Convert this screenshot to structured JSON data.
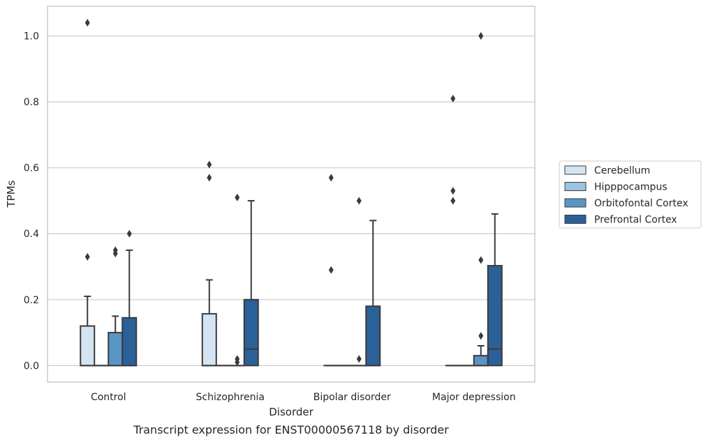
{
  "chart_data": {
    "type": "box",
    "caption": "Transcript expression for ENST00000567118 by disorder",
    "xlabel": "Disorder",
    "ylabel": "TPMs",
    "ylim": [
      -0.05,
      1.09
    ],
    "yticks": [
      "0.0",
      "0.2",
      "0.4",
      "0.6",
      "0.8",
      "1.0"
    ],
    "grid": "horizontal",
    "legend_position": "right",
    "categories": [
      "Control",
      "Schizophrenia",
      "Bipolar disorder",
      "Major depression"
    ],
    "series": [
      {
        "name": "Cerebellum",
        "color": "#d4e4f2",
        "boxes": [
          {
            "q1": 0,
            "median": 0,
            "q3": 0.12,
            "whisker_low": 0,
            "whisker_high": 0.21,
            "outliers": [
              0.33,
              1.04
            ]
          },
          {
            "q1": 0,
            "median": 0,
            "q3": 0.157,
            "whisker_low": 0,
            "whisker_high": 0.26,
            "outliers": [
              0.57,
              0.61
            ]
          },
          {
            "q1": 0,
            "median": 0,
            "q3": 0,
            "whisker_low": 0,
            "whisker_high": 0,
            "outliers": [
              0.29,
              0.57
            ]
          },
          {
            "q1": 0,
            "median": 0,
            "q3": 0,
            "whisker_low": 0,
            "whisker_high": 0,
            "outliers": [
              0.5,
              0.53,
              0.81
            ]
          }
        ]
      },
      {
        "name": "Hipppocampus",
        "color": "#9bc4df",
        "boxes": [
          {
            "q1": 0,
            "median": 0,
            "q3": 0,
            "whisker_low": 0,
            "whisker_high": 0,
            "outliers": []
          },
          {
            "q1": 0,
            "median": 0,
            "q3": 0,
            "whisker_low": 0,
            "whisker_high": 0,
            "outliers": []
          },
          {
            "q1": 0,
            "median": 0,
            "q3": 0,
            "whisker_low": 0,
            "whisker_high": 0,
            "outliers": []
          },
          {
            "q1": 0,
            "median": 0,
            "q3": 0,
            "whisker_low": 0,
            "whisker_high": 0,
            "outliers": []
          }
        ]
      },
      {
        "name": "Orbitofontal Cortex",
        "color": "#5895c5",
        "boxes": [
          {
            "q1": 0,
            "median": 0,
            "q3": 0.1,
            "whisker_low": 0,
            "whisker_high": 0.15,
            "outliers": [
              0.34,
              0.35
            ]
          },
          {
            "q1": 0,
            "median": 0,
            "q3": 0,
            "whisker_low": 0,
            "whisker_high": 0,
            "outliers": [
              0.01,
              0.02,
              0.51
            ]
          },
          {
            "q1": 0,
            "median": 0,
            "q3": 0,
            "whisker_low": 0,
            "whisker_high": 0,
            "outliers": [
              0.02,
              0.5
            ]
          },
          {
            "q1": 0,
            "median": 0,
            "q3": 0.03,
            "whisker_low": 0,
            "whisker_high": 0.06,
            "outliers": [
              0.09,
              0.32,
              1.0
            ]
          }
        ]
      },
      {
        "name": "Prefrontal Cortex",
        "color": "#2b6198",
        "boxes": [
          {
            "q1": 0,
            "median": 0,
            "q3": 0.145,
            "whisker_low": 0,
            "whisker_high": 0.35,
            "outliers": [
              0.4
            ]
          },
          {
            "q1": 0,
            "median": 0.05,
            "q3": 0.2,
            "whisker_low": 0,
            "whisker_high": 0.5,
            "outliers": []
          },
          {
            "q1": 0,
            "median": 0,
            "q3": 0.18,
            "whisker_low": 0,
            "whisker_high": 0.44,
            "outliers": []
          },
          {
            "q1": 0,
            "median": 0.05,
            "q3": 0.303,
            "whisker_low": 0,
            "whisker_high": 0.46,
            "outliers": []
          }
        ]
      }
    ]
  }
}
